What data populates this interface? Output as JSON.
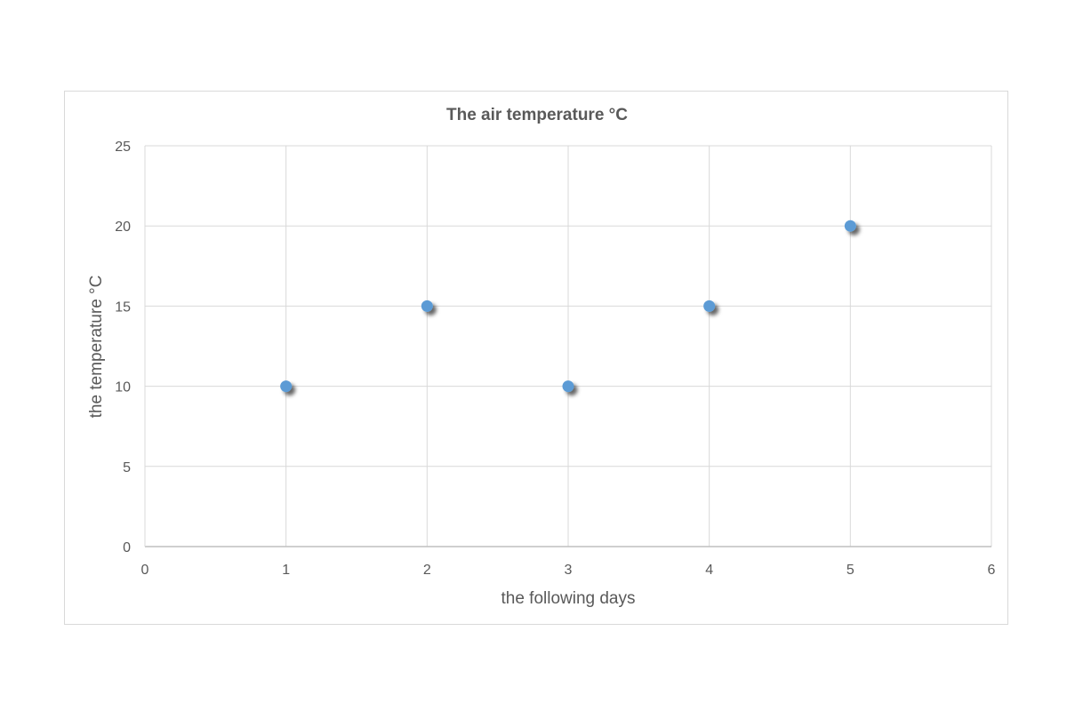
{
  "chart_data": {
    "type": "scatter",
    "title": "The air temperature °C",
    "xlabel": "the following days",
    "ylabel": "the temperature °C",
    "xlim": [
      0,
      6
    ],
    "ylim": [
      0,
      25
    ],
    "xticks": [
      0,
      1,
      2,
      3,
      4,
      5,
      6
    ],
    "yticks": [
      0,
      5,
      10,
      15,
      20,
      25
    ],
    "grid": true,
    "legend": "none",
    "series": [
      {
        "color": "#5b9bd5",
        "points": [
          {
            "x": 1,
            "y": 10
          },
          {
            "x": 2,
            "y": 15
          },
          {
            "x": 3,
            "y": 10
          },
          {
            "x": 4,
            "y": 15
          },
          {
            "x": 5,
            "y": 20
          }
        ]
      }
    ]
  }
}
